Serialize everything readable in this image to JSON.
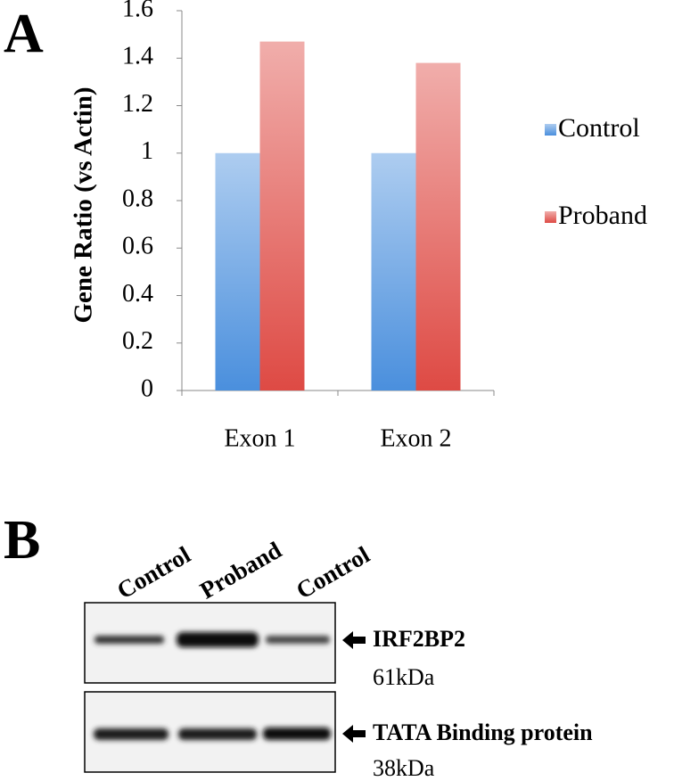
{
  "chart_data": {
    "type": "bar",
    "panel_label": "A",
    "y_label": "Gene Ratio (vs Actin)",
    "categories": [
      "Exon 1",
      "Exon 2"
    ],
    "series": [
      {
        "name": "Control",
        "color": "#4a8fdd",
        "values": [
          1,
          1
        ]
      },
      {
        "name": "Proband",
        "color": "#de4a44",
        "values": [
          1.47,
          1.38
        ]
      }
    ],
    "ylim": [
      0,
      1.6
    ],
    "yticks": [
      0,
      0.2,
      0.4,
      0.6,
      0.8,
      1,
      1.2,
      1.4,
      1.6
    ],
    "legend": "right"
  },
  "panel_b": {
    "panel_label": "B",
    "lanes": [
      "Control",
      "Proband",
      "Control"
    ],
    "blots": [
      {
        "protein": "IRF2BP2",
        "size": "61kDa"
      },
      {
        "protein": "TATA Binding protein",
        "size": "38kDa"
      }
    ]
  }
}
